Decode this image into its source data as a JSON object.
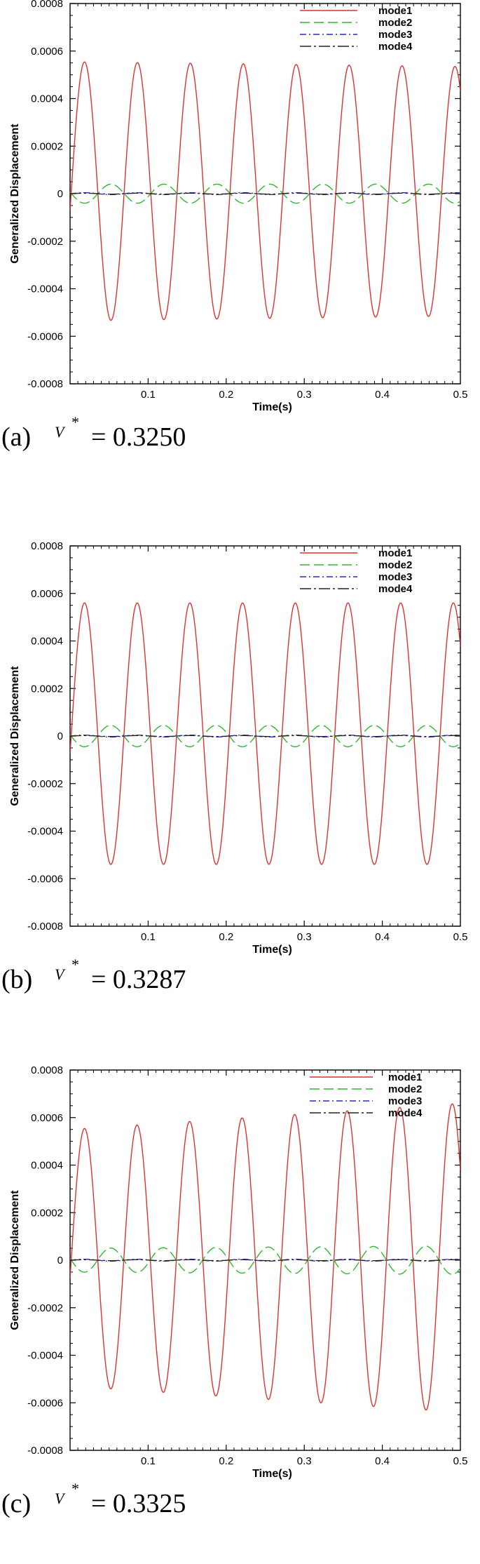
{
  "chart_data": [
    {
      "type": "line",
      "caption": {
        "letter": "(a)",
        "var": "V",
        "sup": "*",
        "eq": "= 0.3250"
      },
      "xlabel": "Time(s)",
      "ylabel": "Generalized Displacement",
      "xlim": [
        0,
        0.5
      ],
      "ylim": [
        -0.0008,
        0.0008
      ],
      "xticks": [
        0.1,
        0.2,
        0.3,
        0.4,
        0.5
      ],
      "xtick_labels": [
        "0.1",
        "0.2",
        "0.3",
        "0.4",
        "0.5"
      ],
      "yticks": [
        0.0008,
        0.0006,
        0.0004,
        0.0002,
        0,
        -0.0002,
        -0.0004,
        -0.0006,
        -0.0008
      ],
      "ytick_labels": [
        "0.0008",
        "0.0006",
        "0.0004",
        "0.0002",
        "0",
        "-0.0002",
        "-0.0004",
        "-0.0006",
        "-0.0008"
      ],
      "legend_position": "top-right",
      "series": [
        {
          "name": "mode1",
          "color": "#e03030",
          "dash": "solid",
          "offset": 1e-05,
          "amp_start": 0.000545,
          "amp_end": 0.000525,
          "period": 0.0678,
          "first_peak": 0.0185
        },
        {
          "name": "mode2",
          "color": "#2eb82e",
          "dash": "long-dash",
          "offset": 0,
          "amp_start": 4e-05,
          "amp_end": 4e-05,
          "period": 0.0678,
          "first_peak": 0.0525
        },
        {
          "name": "mode3",
          "color": "#2a2acc",
          "dash": "dash-dot",
          "offset": 0,
          "amp_start": 4e-06,
          "amp_end": 4e-06,
          "period": 0.0678,
          "first_peak": 0.0185
        },
        {
          "name": "mode4",
          "color": "#222222",
          "dash": "long-dash-dot",
          "offset": 0,
          "amp_start": 2e-06,
          "amp_end": 2e-06,
          "period": 0.0678,
          "first_peak": 0.0185
        }
      ]
    },
    {
      "type": "line",
      "caption": {
        "letter": "(b)",
        "var": "V",
        "sup": "*",
        "eq": "= 0.3287"
      },
      "xlabel": "Time(s)",
      "ylabel": "Generalized Displacement",
      "xlim": [
        0,
        0.5
      ],
      "ylim": [
        -0.0008,
        0.0008
      ],
      "xticks": [
        0.1,
        0.2,
        0.3,
        0.4,
        0.5
      ],
      "xtick_labels": [
        "0.1",
        "0.2",
        "0.3",
        "0.4",
        "0.5"
      ],
      "yticks": [
        0.0008,
        0.0006,
        0.0004,
        0.0002,
        0,
        -0.0002,
        -0.0004,
        -0.0006,
        -0.0008
      ],
      "ytick_labels": [
        "0.0008",
        "0.0006",
        "0.0004",
        "0.0002",
        "0",
        "-0.0002",
        "-0.0004",
        "-0.0006",
        "-0.0008"
      ],
      "legend_position": "top-right",
      "series": [
        {
          "name": "mode1",
          "color": "#e03030",
          "dash": "solid",
          "offset": 1e-05,
          "amp_start": 0.00055,
          "amp_end": 0.00055,
          "period": 0.0675,
          "first_peak": 0.0185
        },
        {
          "name": "mode2",
          "color": "#2eb82e",
          "dash": "long-dash",
          "offset": 0,
          "amp_start": 4.5e-05,
          "amp_end": 4.5e-05,
          "period": 0.0675,
          "first_peak": 0.052
        },
        {
          "name": "mode3",
          "color": "#2a2acc",
          "dash": "dash-dot",
          "offset": 0,
          "amp_start": 4e-06,
          "amp_end": 4e-06,
          "period": 0.0675,
          "first_peak": 0.0185
        },
        {
          "name": "mode4",
          "color": "#222222",
          "dash": "long-dash-dot",
          "offset": 0,
          "amp_start": 2e-06,
          "amp_end": 2e-06,
          "period": 0.0675,
          "first_peak": 0.0185
        }
      ]
    },
    {
      "type": "line",
      "caption": {
        "letter": "(c)",
        "var": "V",
        "sup": "*",
        "eq": "= 0.3325"
      },
      "xlabel": "Time(s)",
      "ylabel": "Generalized Displacement",
      "xlim": [
        0,
        0.5
      ],
      "ylim": [
        -0.0008,
        0.0008
      ],
      "xticks": [
        0.1,
        0.2,
        0.3,
        0.4,
        0.5
      ],
      "xtick_labels": [
        "0.1",
        "0.2",
        "0.3",
        "0.4",
        "0.5"
      ],
      "yticks": [
        0.0008,
        0.0006,
        0.0004,
        0.0002,
        0,
        -0.0002,
        -0.0004,
        -0.0006,
        -0.0008
      ],
      "ytick_labels": [
        "0.0008",
        "0.0006",
        "0.0004",
        "0.0002",
        "0",
        "-0.0002",
        "-0.0004",
        "-0.0006",
        "-0.0008"
      ],
      "legend_position": "top-right",
      "series": [
        {
          "name": "mode1",
          "color": "#e03030",
          "dash": "solid",
          "offset": 1e-05,
          "amp_start": 0.00054,
          "amp_end": 0.00065,
          "period": 0.0673,
          "first_peak": 0.0185
        },
        {
          "name": "mode2",
          "color": "#2eb82e",
          "dash": "long-dash",
          "offset": 0,
          "amp_start": 5e-05,
          "amp_end": 6e-05,
          "period": 0.0673,
          "first_peak": 0.052
        },
        {
          "name": "mode3",
          "color": "#2a2acc",
          "dash": "dash-dot",
          "offset": 0,
          "amp_start": 4e-06,
          "amp_end": 4e-06,
          "period": 0.0673,
          "first_peak": 0.0185
        },
        {
          "name": "mode4",
          "color": "#222222",
          "dash": "long-dash-dot",
          "offset": 0,
          "amp_start": 2e-06,
          "amp_end": 2e-06,
          "period": 0.0673,
          "first_peak": 0.0185
        }
      ]
    }
  ]
}
